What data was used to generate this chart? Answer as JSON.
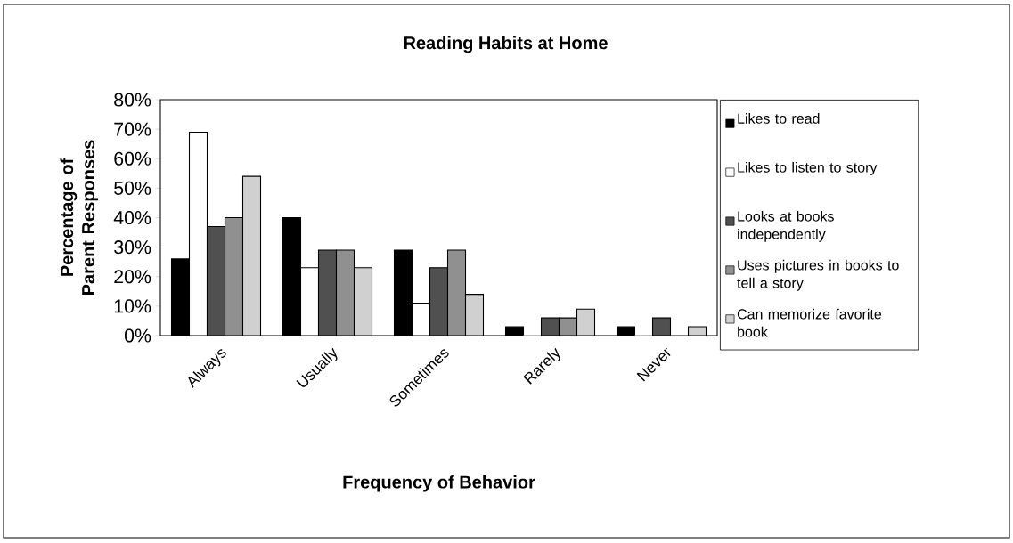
{
  "chart_data": {
    "type": "bar",
    "title": "Reading Habits at Home",
    "xlabel": "Frequency of Behavior",
    "ylabel": "Percentage of Parent Responses",
    "categories": [
      "Always",
      "Usually",
      "Sometimes",
      "Rarely",
      "Never"
    ],
    "series": [
      {
        "name": "Likes to read",
        "color": "#000000",
        "values": [
          26,
          40,
          29,
          3,
          3
        ]
      },
      {
        "name": "Likes to listen to story",
        "color": "#ffffff",
        "values": [
          69,
          23,
          11,
          0,
          0
        ]
      },
      {
        "name": "Looks at books independently",
        "color": "#505050",
        "values": [
          37,
          29,
          23,
          6,
          6
        ]
      },
      {
        "name": "Uses pictures in books to tell a story",
        "color": "#909090",
        "values": [
          40,
          29,
          29,
          6,
          0
        ]
      },
      {
        "name": "Can memorize favorite book",
        "color": "#d0d0d0",
        "values": [
          54,
          23,
          14,
          9,
          3
        ]
      }
    ],
    "ylim": [
      0,
      80
    ],
    "yticks": [
      {
        "value": 0,
        "label": "0%"
      },
      {
        "value": 10,
        "label": "10%"
      },
      {
        "value": 20,
        "label": "20%"
      },
      {
        "value": 30,
        "label": "30%"
      },
      {
        "value": 40,
        "label": "40%"
      },
      {
        "value": 50,
        "label": "50%"
      },
      {
        "value": 60,
        "label": "60%"
      },
      {
        "value": 70,
        "label": "70%"
      },
      {
        "value": 80,
        "label": "80%"
      }
    ],
    "legend": "right",
    "grid": false
  }
}
